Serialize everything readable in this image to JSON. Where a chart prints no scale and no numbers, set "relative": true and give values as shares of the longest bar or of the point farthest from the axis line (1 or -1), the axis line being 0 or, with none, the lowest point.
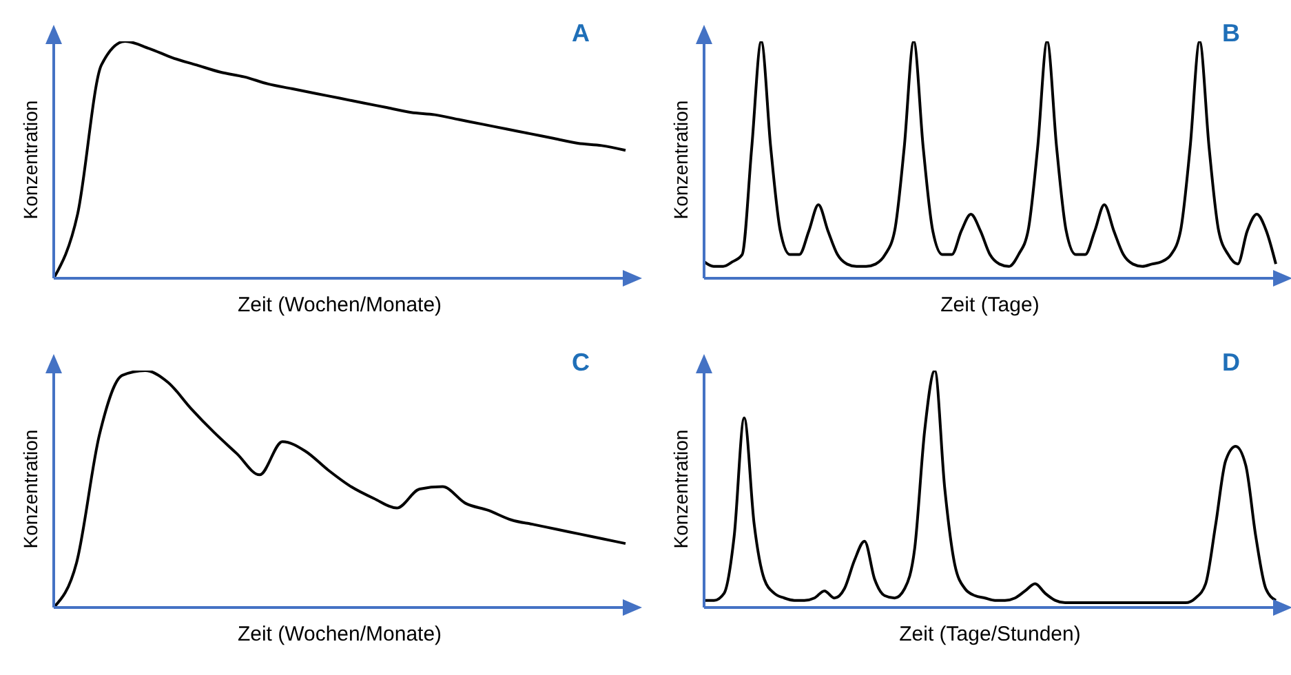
{
  "chart_data": [
    {
      "type": "line",
      "title": "A",
      "xlabel": "Zeit (Wochen/Monate)",
      "ylabel": "Konzentration",
      "relative": true,
      "color": "#000000",
      "categories": [
        null,
        null,
        null,
        null,
        null,
        null,
        null,
        null,
        null,
        null,
        null,
        null,
        null,
        null,
        null,
        null,
        null,
        null,
        null,
        null,
        null,
        null,
        null,
        null,
        null
      ],
      "values": [
        0,
        0.27,
        0.9,
        1.0,
        0.97,
        0.93,
        0.9,
        0.87,
        0.85,
        0.82,
        0.8,
        0.78,
        0.76,
        0.74,
        0.72,
        0.7,
        0.69,
        0.67,
        0.65,
        0.63,
        0.61,
        0.59,
        0.57,
        0.56,
        0.54
      ]
    },
    {
      "type": "line",
      "title": "B",
      "xlabel": "Zeit (Tage)",
      "ylabel": "Konzentration",
      "relative": true,
      "color": "#000000",
      "categories": [
        null,
        null,
        null,
        null,
        null,
        null,
        null,
        null,
        null,
        null,
        null,
        null,
        null,
        null,
        null,
        null,
        null,
        null,
        null,
        null,
        null,
        null,
        null,
        null,
        null,
        null,
        null,
        null,
        null,
        null,
        null,
        null,
        null,
        null,
        null,
        null,
        null,
        null,
        null,
        null,
        null,
        null,
        null,
        null,
        null,
        null,
        null,
        null,
        null,
        null,
        null,
        null,
        null,
        null,
        null,
        null,
        null,
        null,
        null,
        null,
        null
      ],
      "values": [
        0.07,
        0.05,
        0.05,
        0.07,
        0.1,
        0.55,
        1.0,
        0.55,
        0.2,
        0.1,
        0.1,
        0.2,
        0.31,
        0.2,
        0.1,
        0.06,
        0.05,
        0.05,
        0.06,
        0.1,
        0.2,
        0.55,
        1.0,
        0.55,
        0.2,
        0.1,
        0.1,
        0.2,
        0.27,
        0.2,
        0.1,
        0.06,
        0.05,
        0.1,
        0.2,
        0.55,
        1.0,
        0.55,
        0.2,
        0.1,
        0.1,
        0.2,
        0.31,
        0.2,
        0.1,
        0.06,
        0.05,
        0.06,
        0.07,
        0.1,
        0.2,
        0.55,
        1.0,
        0.55,
        0.2,
        0.1,
        0.06,
        0.2,
        0.27,
        0.2,
        0.06
      ]
    },
    {
      "type": "line",
      "title": "C",
      "xlabel": "Zeit (Wochen/Monate)",
      "ylabel": "Konzentration",
      "relative": true,
      "color": "#000000",
      "categories": [
        null,
        null,
        null,
        null,
        null,
        null,
        null,
        null,
        null,
        null,
        null,
        null,
        null,
        null,
        null,
        null,
        null,
        null,
        null,
        null,
        null,
        null,
        null,
        null,
        null,
        null
      ],
      "values": [
        0,
        0.19,
        0.73,
        0.98,
        1.0,
        0.95,
        0.84,
        0.74,
        0.65,
        0.56,
        0.7,
        0.66,
        0.58,
        0.51,
        0.46,
        0.42,
        0.5,
        0.51,
        0.44,
        0.41,
        0.37,
        0.35,
        0.33,
        0.31,
        0.29,
        0.27
      ]
    },
    {
      "type": "line",
      "title": "D",
      "xlabel": "Zeit (Tage/Stunden)",
      "ylabel": "Konzentration",
      "relative": true,
      "color": "#000000",
      "categories": [
        null,
        null,
        null,
        null,
        null,
        null,
        null,
        null,
        null,
        null,
        null,
        null,
        null,
        null,
        null,
        null,
        null,
        null,
        null,
        null,
        null,
        null,
        null,
        null,
        null,
        null,
        null,
        null,
        null,
        null,
        null,
        null,
        null,
        null,
        null,
        null,
        null,
        null,
        null,
        null,
        null,
        null,
        null,
        null,
        null,
        null,
        null,
        null,
        null,
        null,
        null,
        null,
        null,
        null,
        null,
        null,
        null,
        null
      ],
      "values": [
        0.03,
        0.03,
        0.06,
        0.3,
        0.8,
        0.35,
        0.12,
        0.06,
        0.04,
        0.03,
        0.03,
        0.04,
        0.07,
        0.04,
        0.08,
        0.2,
        0.28,
        0.12,
        0.05,
        0.04,
        0.08,
        0.25,
        0.75,
        1.0,
        0.5,
        0.18,
        0.08,
        0.05,
        0.04,
        0.03,
        0.03,
        0.04,
        0.07,
        0.1,
        0.06,
        0.03,
        0.02,
        0.02,
        0.02,
        0.02,
        0.02,
        0.02,
        0.02,
        0.02,
        0.02,
        0.02,
        0.02,
        0.02,
        0.02,
        0.04,
        0.1,
        0.35,
        0.62,
        0.68,
        0.6,
        0.3,
        0.08,
        0.03
      ]
    }
  ]
}
